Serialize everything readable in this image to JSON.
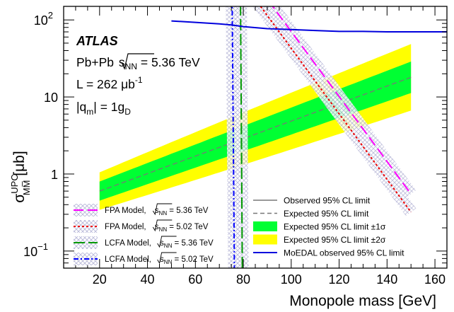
{
  "chart_data": {
    "type": "line",
    "y_scale": "log",
    "xlim": [
      5,
      165
    ],
    "ylim": [
      0.06,
      150
    ],
    "grid": false,
    "xlabel": "Monopole mass [GeV]",
    "ylabel": "σ",
    "ylabel_sup": "UPC",
    "ylabel_sub": "MM̅",
    "ylabel_unit": " [μb]",
    "x_ticks": [
      20,
      40,
      60,
      80,
      100,
      120,
      140,
      160
    ],
    "y_ticks": [
      {
        "value": 100,
        "base": "10",
        "exp": "2"
      },
      {
        "value": 10,
        "base": "10",
        "exp": ""
      },
      {
        "value": 1,
        "base": "1",
        "exp": ""
      },
      {
        "value": 0.1,
        "base": "10",
        "exp": "−1"
      }
    ],
    "annotations": {
      "atlas": "ATLAS",
      "line1_pre": "Pb+Pb ",
      "line1_sqrt": "s",
      "line1_sub": "NN",
      "line1_post": " = 5.36 TeV",
      "line2_pre": "L = 262 μb",
      "line2_sup": "-1",
      "line3_pre": "|q",
      "line3_sub1": "m",
      "line3_mid": "| = 1g",
      "line3_sub2": "D"
    },
    "expected": {
      "x": [
        20,
        150
      ],
      "y": [
        0.6,
        18
      ],
      "band1_factor": [
        1.33,
        1.6
      ],
      "band2_factor": [
        1.75,
        2.7
      ]
    },
    "moedal": {
      "name": "MoEDAL observed 95% CL limit",
      "color": "#0000dd",
      "x": [
        50,
        60,
        70,
        75,
        80,
        90,
        100,
        110,
        120,
        130,
        140,
        150,
        165
      ],
      "y": [
        97,
        93,
        89,
        86,
        82,
        77,
        75,
        73,
        71,
        71,
        70,
        70,
        70
      ]
    },
    "models": [
      {
        "model": "FPA Model",
        "energy": "5.36 TeV",
        "color": "#ff00ff",
        "dash": "14 6",
        "x1": 87,
        "y1": 250,
        "x2": 150,
        "y2": 0.55
      },
      {
        "model": "FPA Model",
        "energy": "5.02 TeV",
        "color": "#ee0000",
        "dash": "3 3",
        "x1": 82,
        "y1": 250,
        "x2": 150,
        "y2": 0.32
      },
      {
        "model": "LCFA Model",
        "energy": "5.36 TeV",
        "color": "#009900",
        "dash": "16 5",
        "x1": 78.8,
        "y1": 250,
        "x2": 79.6,
        "y2": 0.05
      },
      {
        "model": "LCFA Model",
        "energy": "5.02 TeV",
        "color": "#0000ff",
        "dash": "7 3 2 3",
        "x1": 75.3,
        "y1": 250,
        "x2": 76.3,
        "y2": 0.05
      }
    ],
    "legend_right": [
      {
        "label": "Observed 95% CL limit",
        "style": "solid-grey"
      },
      {
        "label": "Expected 95% CL limit",
        "style": "dashed-grey"
      },
      {
        "label": "Expected 95% CL limit ±1σ",
        "style": "green-box"
      },
      {
        "label": "Expected 95% CL limit ±2σ",
        "style": "yellow-box"
      },
      {
        "label": "MoEDAL observed 95% CL limit",
        "style": "blue-line"
      }
    ],
    "legend_left_sqrt": "s",
    "legend_left_sub": "NN",
    "colors": {
      "band2": "#ffff00",
      "band1": "#00ff33",
      "expected_line": "#777777",
      "observed_line": "#999999"
    }
  }
}
